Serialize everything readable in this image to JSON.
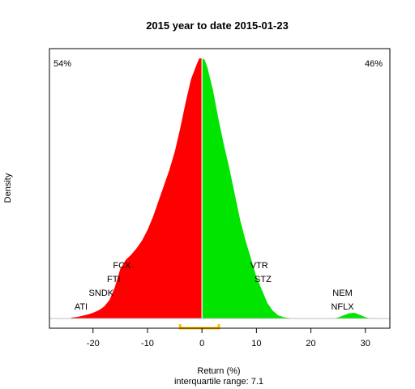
{
  "chart_data": {
    "type": "area",
    "title": "2015  year to date 2015-01-23",
    "xlabel": "Return (%)",
    "ylabel": "Density",
    "subtitle": "interquartile range: 7.1",
    "xlim": [
      -28,
      34.5
    ],
    "ylim": [
      0,
      1
    ],
    "x_ticks": [
      -20,
      -10,
      0,
      10,
      20,
      30
    ],
    "x_tick_labels": [
      "-20",
      "-10",
      "0",
      "10",
      "20",
      "30"
    ],
    "split_at": 0,
    "negative_color": "#ff0000",
    "positive_color": "#00e400",
    "zero_line_color": "#ffffff",
    "baseline_color": "#bebebe",
    "iqr_bracket_color": "#ffc000",
    "iqr": {
      "q1": -4,
      "q3": 3.1,
      "value": 7.1
    },
    "percent_negative": {
      "text": "54%",
      "color": "#ff0000",
      "position": "top-left"
    },
    "percent_positive": {
      "text": "46%",
      "color": "#228b22",
      "position": "top-right"
    },
    "density": {
      "x": [
        -24,
        -23,
        -22,
        -21,
        -20,
        -19,
        -18,
        -17,
        -16,
        -15,
        -14,
        -13,
        -12,
        -11,
        -10,
        -9,
        -8,
        -7,
        -6,
        -5,
        -4,
        -3,
        -2,
        -1,
        -0.5,
        0,
        0.5,
        1,
        2,
        3,
        4,
        5,
        6,
        7,
        8,
        9,
        10,
        11,
        12,
        13,
        14,
        15,
        16,
        17,
        20,
        24,
        25,
        26,
        27,
        28,
        29,
        30,
        31
      ],
      "y": [
        0.003,
        0.006,
        0.01,
        0.015,
        0.022,
        0.031,
        0.045,
        0.07,
        0.12,
        0.19,
        0.225,
        0.245,
        0.27,
        0.3,
        0.34,
        0.39,
        0.45,
        0.51,
        0.57,
        0.64,
        0.73,
        0.83,
        0.92,
        0.975,
        1.0,
        1.0,
        0.995,
        0.965,
        0.88,
        0.77,
        0.67,
        0.58,
        0.48,
        0.38,
        0.3,
        0.23,
        0.16,
        0.11,
        0.06,
        0.03,
        0.012,
        0.005,
        0.002,
        0.0,
        0.0,
        0.0,
        0.004,
        0.012,
        0.02,
        0.022,
        0.014,
        0.005,
        0.0
      ]
    },
    "tickers": [
      {
        "label": "ATI",
        "x": -22.2,
        "level": 0,
        "side": "left"
      },
      {
        "label": "SNDK",
        "x": -18.5,
        "level": 1,
        "side": "left"
      },
      {
        "label": "FTI",
        "x": -16.2,
        "level": 2,
        "side": "left"
      },
      {
        "label": "FCX",
        "x": -14.7,
        "level": 3,
        "side": "left"
      },
      {
        "label": "NFLX",
        "x": 25.8,
        "level": 0,
        "side": "right"
      },
      {
        "label": "NEM",
        "x": 25.8,
        "level": 1,
        "side": "right"
      },
      {
        "label": "STZ",
        "x": 11.2,
        "level": 2,
        "side": "right"
      },
      {
        "label": "VTR",
        "x": 10.5,
        "level": 3,
        "side": "right"
      }
    ]
  }
}
